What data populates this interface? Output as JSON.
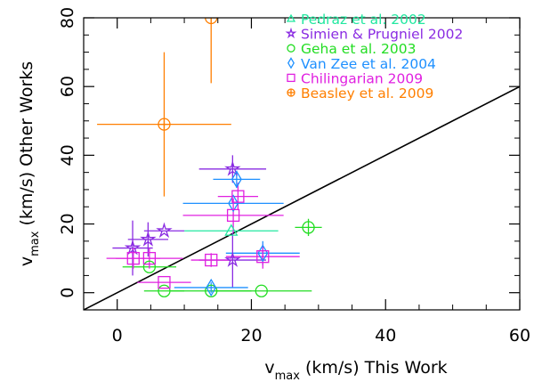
{
  "chart_data": {
    "type": "scatter",
    "title": "",
    "xlabel": "v_max (km/s) This Work",
    "xlabel_main": "v",
    "xlabel_sub": "max",
    "xlabel_rest": " (km/s) This Work",
    "ylabel": "v_max (km/s) Other Works",
    "ylabel_main": "v",
    "ylabel_sub": "max",
    "ylabel_rest": " (km/s) Other Works",
    "xlim": [
      -5,
      60
    ],
    "ylim": [
      -5,
      80
    ],
    "xticks": [
      0,
      20,
      40,
      60
    ],
    "yticks": [
      0,
      20,
      40,
      60,
      80
    ],
    "legend_position": "top-right",
    "one_to_one_line": {
      "from": [
        -5,
        -5
      ],
      "to": [
        60,
        60
      ],
      "color": "#000000"
    },
    "series": [
      {
        "name": "Pedraz et al. 2002",
        "marker": "triangle",
        "color": "#22e8a0",
        "points": [
          {
            "x": 17,
            "y": 18,
            "xerr": 7,
            "yerr": 0
          }
        ]
      },
      {
        "name": "Simien & Prugniel 2002",
        "marker": "star",
        "color": "#8a2be2",
        "points": [
          {
            "x": 2.3,
            "y": 13,
            "xerr": 3,
            "yerr": 8
          },
          {
            "x": 4.6,
            "y": 15.5,
            "xerr": 3,
            "yerr": 5
          },
          {
            "x": 7,
            "y": 18,
            "xerr": 3,
            "yerr": 0
          },
          {
            "x": 17.2,
            "y": 36,
            "xerr": 5,
            "yerr": 4
          },
          {
            "x": 17.2,
            "y": 9.5,
            "xerr": 5,
            "yerr": 8
          }
        ]
      },
      {
        "name": "Geha et al. 2003",
        "marker": "circle",
        "color": "#22dd22",
        "points": [
          {
            "x": 28.5,
            "y": 19,
            "xerr": 2,
            "yerr": 2.5
          },
          {
            "x": 4.8,
            "y": 7.5,
            "xerr": 4,
            "yerr": 0
          },
          {
            "x": 7,
            "y": 0.5,
            "xerr": 3,
            "yerr": 0
          },
          {
            "x": 14,
            "y": 0.5,
            "xerr": 6,
            "yerr": 0
          },
          {
            "x": 21.5,
            "y": 0.5,
            "xerr": 7.5,
            "yerr": 0
          }
        ]
      },
      {
        "name": "Van Zee et al. 2004",
        "marker": "diamond",
        "color": "#1e90ff",
        "points": [
          {
            "x": 17.8,
            "y": 33,
            "xerr": 3.5,
            "yerr": 2.5
          },
          {
            "x": 17.3,
            "y": 26,
            "xerr": 7.5,
            "yerr": 0
          },
          {
            "x": 21.7,
            "y": 11.5,
            "xerr": 5.5,
            "yerr": 3.5
          },
          {
            "x": 14,
            "y": 1.5,
            "xerr": 5.5,
            "yerr": 1.5
          }
        ]
      },
      {
        "name": "Chilingarian 2009",
        "marker": "square",
        "color": "#e020e0",
        "points": [
          {
            "x": 18,
            "y": 28,
            "xerr": 3,
            "yerr": 4
          },
          {
            "x": 17.3,
            "y": 22.5,
            "xerr": 7.5,
            "yerr": 5
          },
          {
            "x": 2.4,
            "y": 10,
            "xerr": 4,
            "yerr": 3
          },
          {
            "x": 4.8,
            "y": 10,
            "xerr": 5,
            "yerr": 3
          },
          {
            "x": 14,
            "y": 9.5,
            "xerr": 3,
            "yerr": 2
          },
          {
            "x": 21.7,
            "y": 10.5,
            "xerr": 5.5,
            "yerr": 3.5
          },
          {
            "x": 7,
            "y": 3,
            "xerr": 4,
            "yerr": 0
          }
        ]
      },
      {
        "name": "Beasley et al. 2009",
        "marker": "plus",
        "color": "#ff7f00",
        "points": [
          {
            "x": 7,
            "y": 49,
            "xerr": 10,
            "yerr": 21
          },
          {
            "x": 14,
            "y": 80,
            "xerr": 0,
            "yerr": 19
          }
        ]
      }
    ]
  }
}
